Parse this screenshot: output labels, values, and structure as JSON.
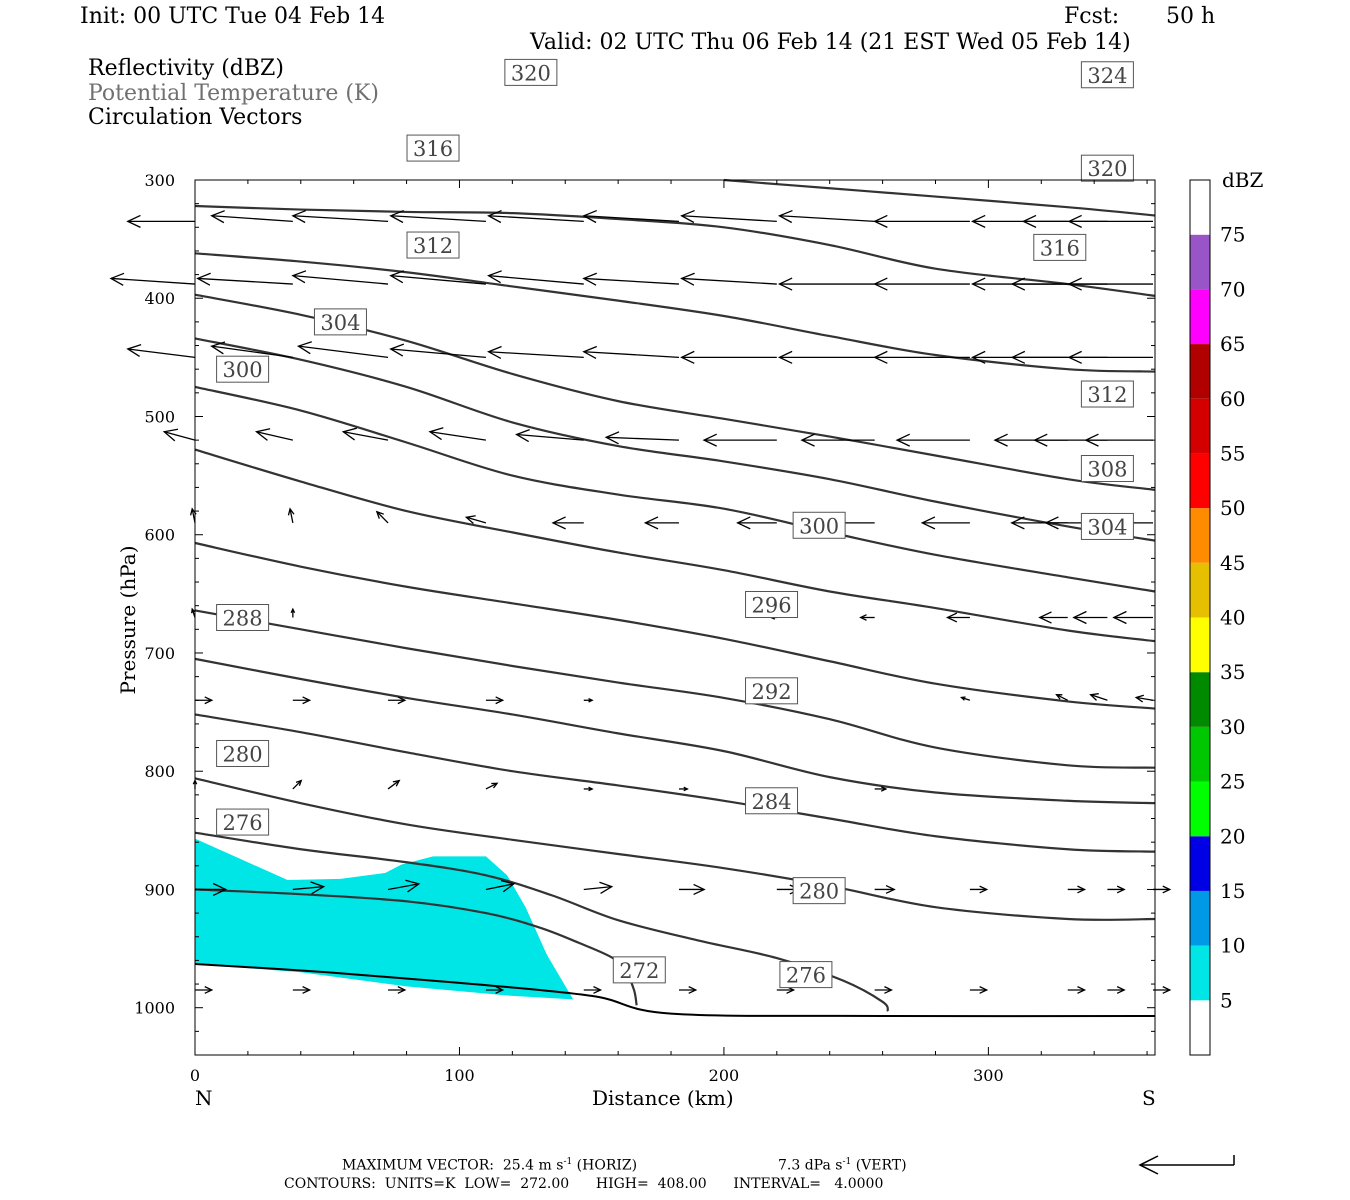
{
  "header": {
    "init": "Init: 00 UTC Tue 04 Feb 14",
    "fcst_label": "Fcst:",
    "fcst_value": "50 h",
    "valid": "Valid: 02 UTC Thu 06 Feb 14 (21 EST Wed 05 Feb 14)"
  },
  "fields": [
    {
      "label": "Reflectivity (dBZ)",
      "color": "#000000"
    },
    {
      "label": "Potential Temperature (K)",
      "color": "#707070"
    },
    {
      "label": "Circulation Vectors",
      "color": "#000000"
    }
  ],
  "footer": {
    "max_vector_label": "MAXIMUM VECTOR:",
    "horiz_value": "25.4",
    "horiz_unit": "m s",
    "horiz_exp": "-1",
    "horiz_tag": "(HORIZ)",
    "vert_value": "7.3",
    "vert_unit": "dPa s",
    "vert_exp": "-1",
    "vert_tag": "(VERT)",
    "contours": "CONTOURS:  UNITS=K  LOW=  272.00      HIGH=  408.00      INTERVAL=   4.0000"
  },
  "chart_data": {
    "type": "contour",
    "x_axis": {
      "label": "Distance (km)",
      "range": [
        0,
        363
      ],
      "ticks": [
        0,
        100,
        200,
        300
      ],
      "left_end": "N",
      "right_end": "S"
    },
    "y_axis": {
      "label": "Pressure (hPa)",
      "range": [
        1040,
        300
      ],
      "ticks": [
        300,
        400,
        500,
        600,
        700,
        800,
        900,
        1000
      ],
      "inverted": true
    },
    "terrain_surface": [
      [
        0,
        963
      ],
      [
        50,
        970
      ],
      [
        100,
        979
      ],
      [
        150,
        990
      ],
      [
        180,
        1005
      ],
      [
        260,
        1007
      ],
      [
        363,
        1007
      ]
    ],
    "theta_contours": [
      {
        "value": 272,
        "label": "272",
        "label_at": [
          168,
          968
        ],
        "points": [
          [
            0,
            900
          ],
          [
            40,
            904
          ],
          [
            80,
            910
          ],
          [
            110,
            920
          ],
          [
            130,
            932
          ],
          [
            145,
            945
          ],
          [
            158,
            958
          ],
          [
            163,
            970
          ],
          [
            166,
            985
          ],
          [
            167,
            998
          ]
        ]
      },
      {
        "value": 276,
        "label": "276",
        "label_at": [
          18,
          843
        ],
        "points": [
          [
            0,
            852
          ],
          [
            40,
            866
          ],
          [
            80,
            877
          ],
          [
            110,
            888
          ],
          [
            135,
            905
          ],
          [
            160,
            926
          ],
          [
            190,
            943
          ],
          [
            220,
            958
          ],
          [
            245,
            977
          ],
          [
            260,
            995
          ],
          [
            262,
            1003
          ]
        ]
      },
      {
        "value": 276,
        "label": "276",
        "label_at": [
          231,
          972
        ],
        "points": []
      },
      {
        "value": 280,
        "label": "280",
        "label_at": [
          18,
          785
        ],
        "points": [
          [
            0,
            806
          ],
          [
            40,
            827
          ],
          [
            80,
            845
          ],
          [
            120,
            858
          ],
          [
            160,
            870
          ],
          [
            200,
            882
          ],
          [
            240,
            897
          ],
          [
            280,
            915
          ],
          [
            330,
            925
          ],
          [
            363,
            925
          ]
        ]
      },
      {
        "value": 280,
        "label": "280",
        "label_at": [
          236,
          901
        ],
        "points": []
      },
      {
        "value": 284,
        "label": "284",
        "label_at": [
          218,
          825
        ],
        "points": [
          [
            0,
            752
          ],
          [
            40,
            767
          ],
          [
            80,
            784
          ],
          [
            120,
            800
          ],
          [
            160,
            812
          ],
          [
            200,
            825
          ],
          [
            240,
            840
          ],
          [
            280,
            855
          ],
          [
            330,
            866
          ],
          [
            363,
            868
          ]
        ]
      },
      {
        "value": 288,
        "label": "288",
        "label_at": [
          18,
          670
        ],
        "points": [
          [
            0,
            705
          ],
          [
            40,
            722
          ],
          [
            80,
            738
          ],
          [
            120,
            752
          ],
          [
            160,
            768
          ],
          [
            200,
            783
          ],
          [
            240,
            805
          ],
          [
            280,
            818
          ],
          [
            330,
            825
          ],
          [
            363,
            827
          ]
        ]
      },
      {
        "value": 292,
        "label": "292",
        "label_at": [
          218,
          732
        ],
        "points": [
          [
            0,
            664
          ],
          [
            40,
            680
          ],
          [
            80,
            696
          ],
          [
            120,
            711
          ],
          [
            160,
            725
          ],
          [
            200,
            738
          ],
          [
            240,
            756
          ],
          [
            280,
            780
          ],
          [
            330,
            795
          ],
          [
            363,
            797
          ]
        ]
      },
      {
        "value": 296,
        "label": "296",
        "label_at": [
          218,
          659
        ],
        "points": [
          [
            0,
            607
          ],
          [
            40,
            627
          ],
          [
            80,
            644
          ],
          [
            120,
            658
          ],
          [
            160,
            672
          ],
          [
            200,
            688
          ],
          [
            240,
            707
          ],
          [
            280,
            726
          ],
          [
            330,
            741
          ],
          [
            363,
            747
          ]
        ]
      },
      {
        "value": 300,
        "label": "300",
        "label_at": [
          18,
          460
        ],
        "points": [
          [
            0,
            528
          ],
          [
            40,
            555
          ],
          [
            80,
            580
          ],
          [
            120,
            598
          ],
          [
            160,
            615
          ],
          [
            200,
            630
          ],
          [
            240,
            648
          ],
          [
            280,
            662
          ],
          [
            330,
            681
          ],
          [
            363,
            690
          ]
        ]
      },
      {
        "value": 300,
        "label": "300",
        "label_at": [
          236,
          592
        ],
        "points": []
      },
      {
        "value": 304,
        "label": "304",
        "label_at": [
          55,
          420
        ],
        "points": [
          [
            0,
            475
          ],
          [
            40,
            495
          ],
          [
            80,
            522
          ],
          [
            120,
            550
          ],
          [
            160,
            566
          ],
          [
            200,
            578
          ],
          [
            240,
            598
          ],
          [
            280,
            617
          ],
          [
            330,
            636
          ],
          [
            363,
            648
          ]
        ]
      },
      {
        "value": 304,
        "label": "304",
        "label_at": [
          345,
          593
        ],
        "points": []
      },
      {
        "value": 308,
        "label": "308",
        "label_at": [
          345,
          544
        ],
        "points": [
          [
            0,
            434
          ],
          [
            40,
            452
          ],
          [
            80,
            475
          ],
          [
            120,
            505
          ],
          [
            160,
            525
          ],
          [
            200,
            538
          ],
          [
            240,
            553
          ],
          [
            280,
            572
          ],
          [
            330,
            593
          ],
          [
            363,
            605
          ]
        ]
      },
      {
        "value": 312,
        "label": "312",
        "label_at": [
          90,
          355
        ],
        "points": [
          [
            0,
            397
          ],
          [
            40,
            414
          ],
          [
            80,
            436
          ],
          [
            120,
            464
          ],
          [
            160,
            487
          ],
          [
            200,
            502
          ],
          [
            240,
            517
          ],
          [
            280,
            533
          ],
          [
            330,
            553
          ],
          [
            363,
            562
          ]
        ]
      },
      {
        "value": 312,
        "label": "312",
        "label_at": [
          345,
          481
        ],
        "points": []
      },
      {
        "value": 316,
        "label": "316",
        "label_at": [
          90,
          273
        ],
        "points": [
          [
            0,
            362
          ],
          [
            40,
            369
          ],
          [
            80,
            378
          ],
          [
            120,
            390
          ],
          [
            160,
            402
          ],
          [
            200,
            415
          ],
          [
            240,
            432
          ],
          [
            280,
            448
          ],
          [
            330,
            460
          ],
          [
            363,
            462
          ]
        ]
      },
      {
        "value": 316,
        "label": "316",
        "label_at": [
          327,
          357
        ],
        "points": []
      },
      {
        "value": 320,
        "label": "320",
        "label_at": [
          127,
          209
        ],
        "points": [
          [
            0,
            322
          ],
          [
            40,
            325
          ],
          [
            80,
            327
          ],
          [
            120,
            328
          ],
          [
            160,
            333
          ],
          [
            200,
            340
          ],
          [
            240,
            355
          ],
          [
            280,
            375
          ],
          [
            330,
            388
          ],
          [
            363,
            398
          ]
        ]
      },
      {
        "value": 320,
        "label": "320",
        "label_at": [
          345,
          290
        ],
        "points": []
      },
      {
        "value": 324,
        "label": "324",
        "label_at": [
          345,
          211
        ],
        "points": [
          [
            200,
            300
          ],
          [
            240,
            307
          ],
          [
            280,
            314
          ],
          [
            330,
            323
          ],
          [
            363,
            330
          ]
        ]
      }
    ],
    "reflectivity_polygons": [
      {
        "dbz_min": 5,
        "dbz_max": 10,
        "color": "#00e5e5",
        "points": [
          [
            0,
            857
          ],
          [
            15,
            872
          ],
          [
            35,
            892
          ],
          [
            55,
            891
          ],
          [
            72,
            886
          ],
          [
            78,
            879
          ],
          [
            90,
            872
          ],
          [
            110,
            872
          ],
          [
            118,
            888
          ],
          [
            125,
            915
          ],
          [
            133,
            955
          ],
          [
            143,
            993
          ],
          [
            120,
            990
          ],
          [
            80,
            982
          ],
          [
            40,
            970
          ],
          [
            0,
            963
          ]
        ]
      }
    ],
    "vectors": {
      "note": "u in km/h-like screen scale, v positive = upward",
      "rows": [
        {
          "p": 335,
          "u": [
            -24,
            -29,
            -34,
            -34,
            -34,
            -34,
            -34,
            -34,
            -34,
            -34,
            -30,
            -30
          ],
          "v": [
            0,
            2,
            2,
            2,
            2,
            2,
            2,
            2,
            0,
            0,
            0,
            0
          ]
        },
        {
          "p": 388,
          "u": [
            -30,
            -34,
            -34,
            -34,
            -34,
            -34,
            -34,
            -34,
            -34,
            -34,
            -34,
            -30
          ],
          "v": [
            2,
            2,
            3,
            3,
            3,
            2,
            2,
            0,
            0,
            0,
            0,
            0
          ]
        },
        {
          "p": 450,
          "u": [
            -24,
            -29,
            -32,
            -34,
            -34,
            -34,
            -34,
            -34,
            -34,
            -34,
            -34,
            -30
          ],
          "v": [
            3,
            4,
            4,
            3,
            2,
            2,
            0,
            0,
            0,
            0,
            0,
            0
          ]
        },
        {
          "p": 520,
          "u": [
            -11,
            -13,
            -16,
            -20,
            -24,
            -26,
            -26,
            -26,
            -26,
            -26,
            -26,
            -24
          ],
          "v": [
            3,
            3,
            3,
            3,
            2,
            1,
            0,
            0,
            0,
            0,
            0,
            0
          ]
        },
        {
          "p": 590,
          "u": [
            -1,
            -1,
            -4,
            -7,
            -11,
            -12,
            -14,
            -16,
            -17,
            -20,
            -22,
            -22
          ],
          "v": [
            5,
            5,
            4,
            2,
            0,
            0,
            0,
            0,
            0,
            0,
            0,
            0
          ]
        },
        {
          "p": 670,
          "u": [
            -1,
            0,
            0,
            0,
            0,
            0,
            -2,
            -5,
            -8,
            -10,
            -12,
            -14
          ],
          "v": [
            3,
            3,
            0,
            0,
            0,
            0,
            0,
            0,
            0,
            0,
            0,
            0
          ]
        },
        {
          "p": 740,
          "u": [
            6,
            6,
            6,
            6,
            3,
            0,
            0,
            0,
            -3,
            -4,
            -6,
            -6
          ],
          "v": [
            0,
            0,
            0,
            0,
            0,
            0,
            0,
            0,
            1,
            2,
            2,
            1
          ]
        },
        {
          "p": 815,
          "u": [
            0,
            3,
            4,
            4,
            3,
            3,
            4,
            4,
            0,
            0,
            0,
            0
          ],
          "v": [
            3,
            3,
            3,
            2,
            0,
            0,
            -1,
            0,
            0,
            0,
            0,
            0
          ]
        },
        {
          "p": 900,
          "u": [
            11,
            11,
            11,
            10,
            10,
            9,
            8,
            7,
            6,
            6,
            6,
            6
          ],
          "v": [
            0,
            1,
            2,
            2,
            1,
            0,
            0,
            0,
            0,
            0,
            0,
            0
          ]
        },
        {
          "p": 985,
          "u": [
            6,
            6,
            6,
            6,
            6,
            6,
            6,
            6,
            6,
            6,
            6,
            6
          ],
          "v": [
            0,
            0,
            0,
            0,
            0,
            0,
            0,
            0,
            0,
            0,
            0,
            0
          ]
        }
      ],
      "x_positions": [
        0,
        37,
        73,
        110,
        147,
        183,
        220,
        257,
        293,
        330,
        363,
        363
      ]
    },
    "colorbar": {
      "title": "dBZ",
      "levels": [
        "5",
        "10",
        "15",
        "20",
        "25",
        "30",
        "35",
        "40",
        "45",
        "50",
        "55",
        "60",
        "65",
        "70",
        "75"
      ],
      "colors": [
        "#ffffff",
        "#00e5e5",
        "#0099e6",
        "#0000e5",
        "#00ff00",
        "#00c800",
        "#008a00",
        "#ffff00",
        "#e6c000",
        "#ff8c00",
        "#ff0000",
        "#d40000",
        "#b00000",
        "#ff00ff",
        "#9955c8",
        "#ffffff"
      ]
    }
  }
}
